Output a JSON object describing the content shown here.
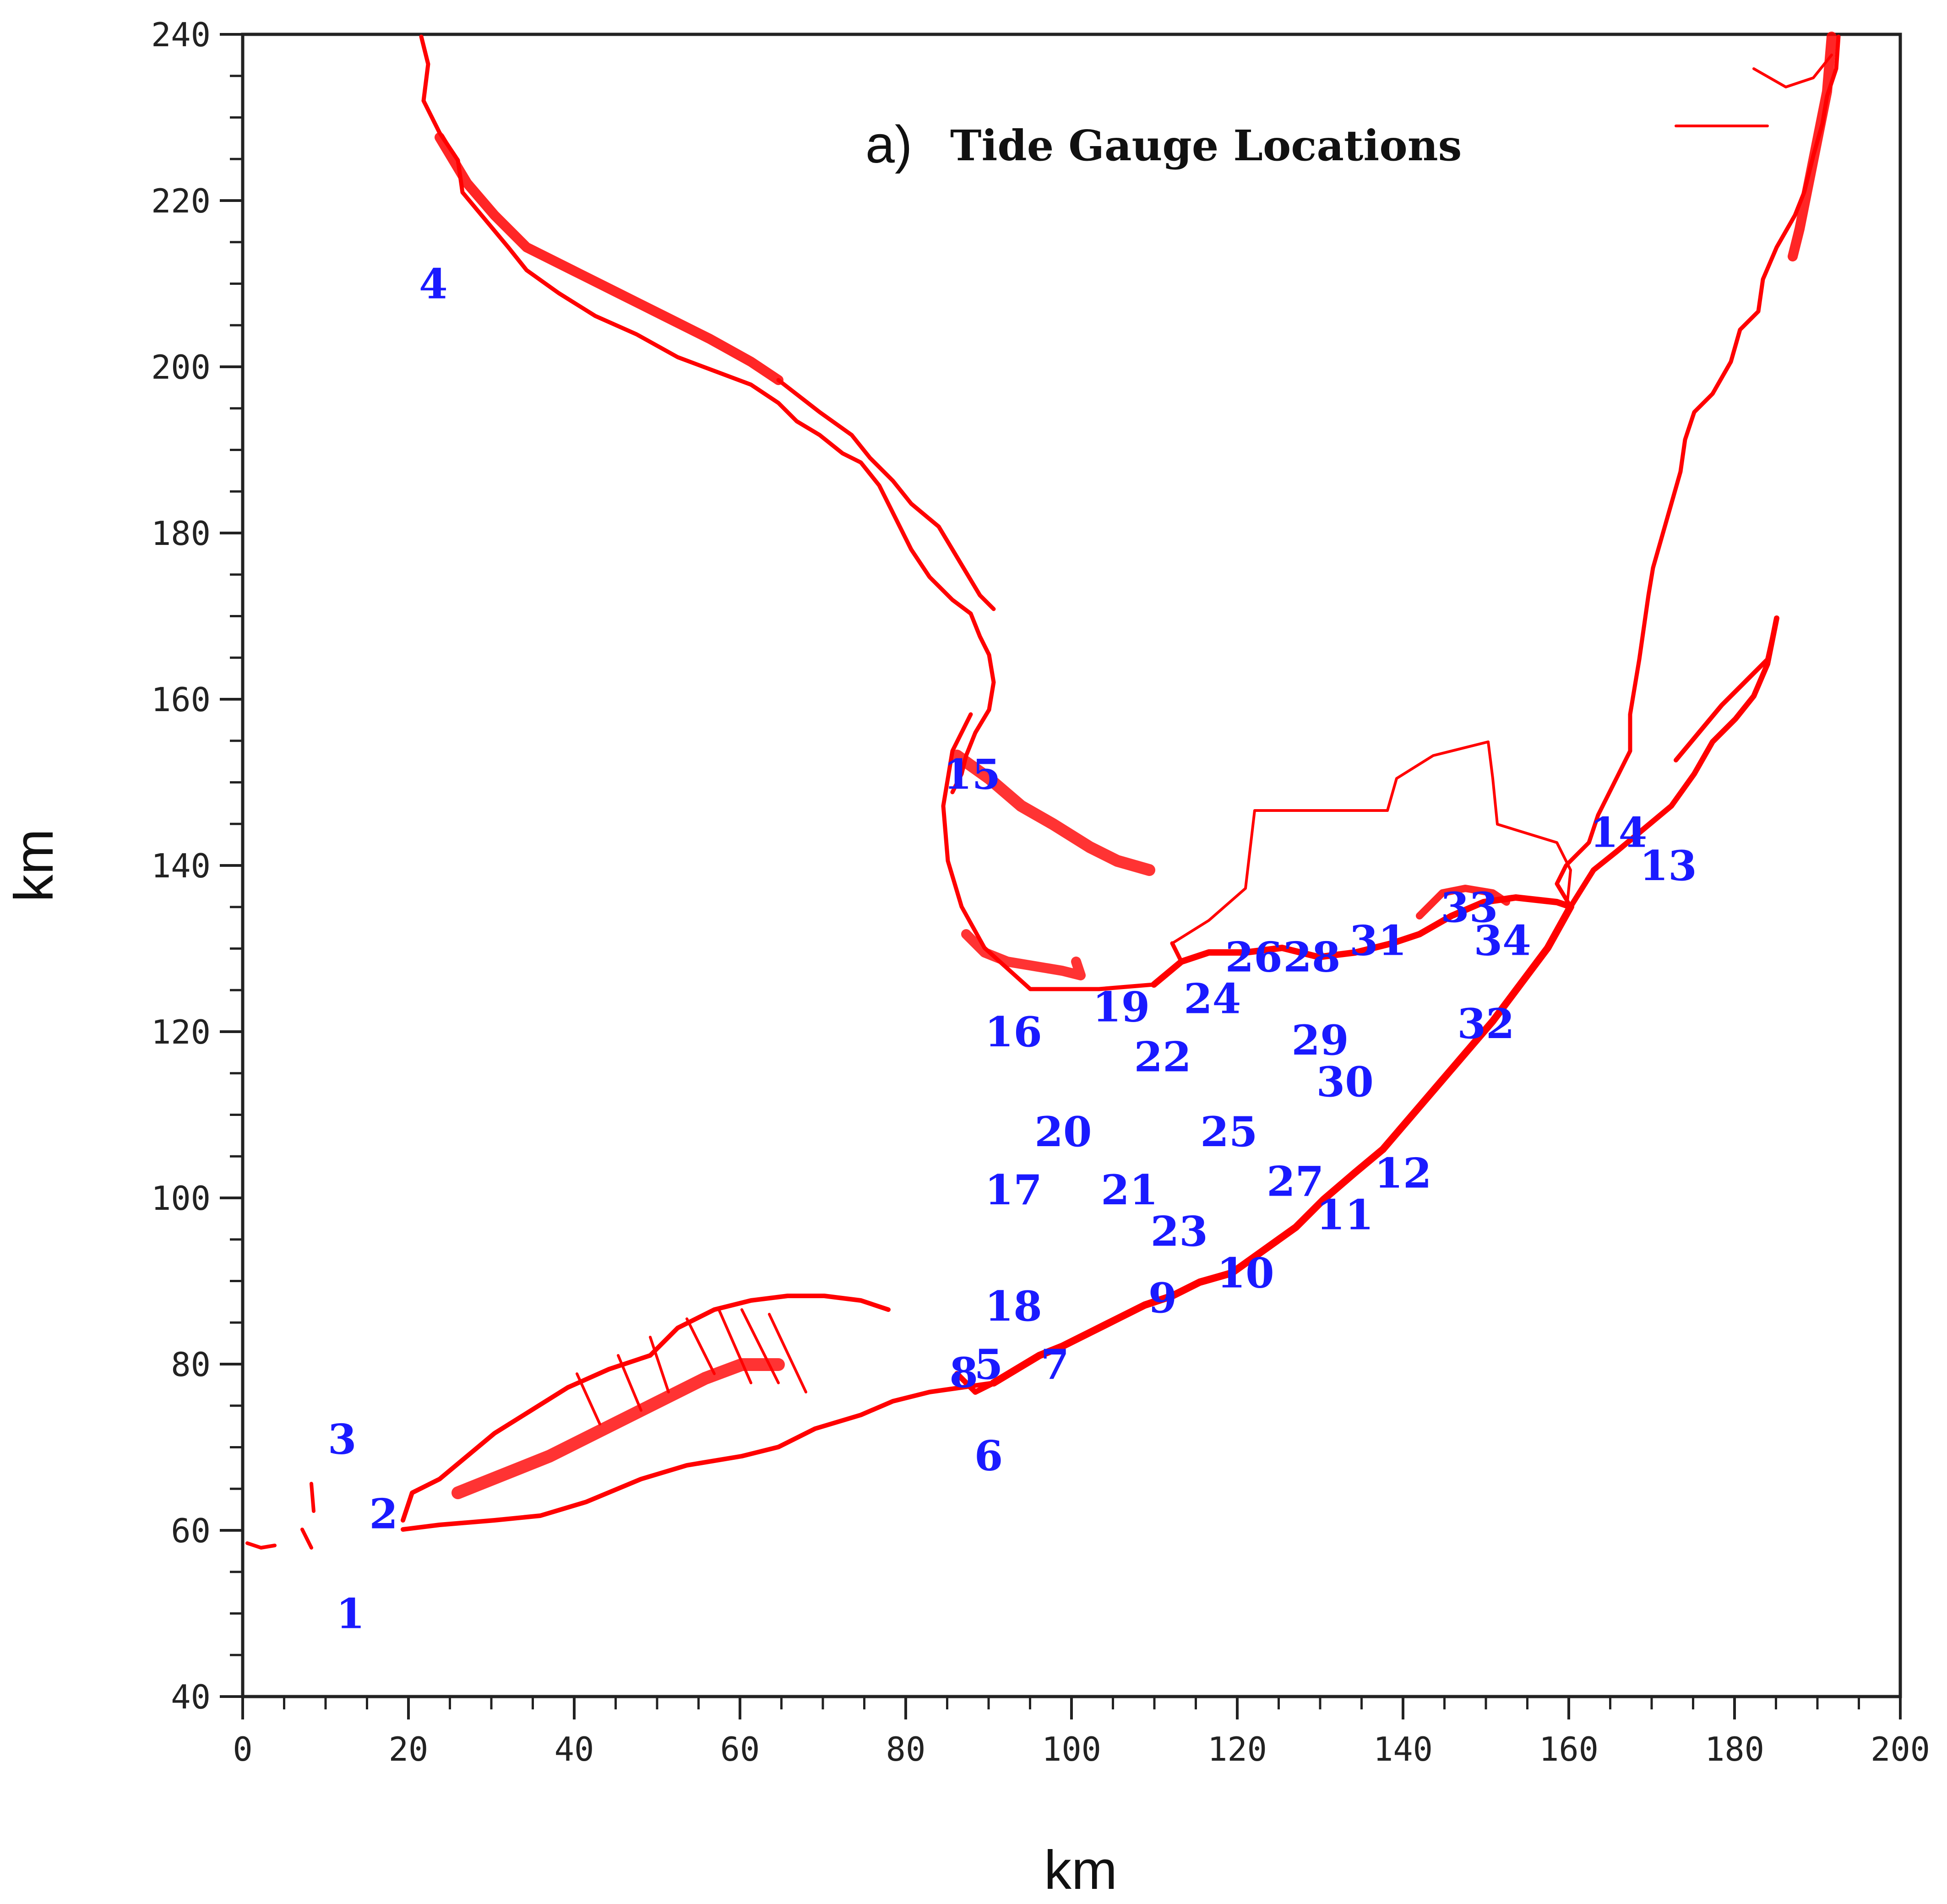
{
  "figure": {
    "panel_letter": "a)",
    "title": "Tide Gauge Locations"
  },
  "axes": {
    "x": {
      "label": "km",
      "min": 0,
      "max": 200,
      "ticks": [
        "0",
        "20",
        "40",
        "60",
        "80",
        "100",
        "120",
        "140",
        "160",
        "180",
        "200"
      ]
    },
    "y": {
      "label": "km",
      "min": 40,
      "max": 240,
      "ticks": [
        "40",
        "60",
        "80",
        "100",
        "120",
        "140",
        "160",
        "180",
        "200",
        "220",
        "240"
      ]
    }
  },
  "colors": {
    "coastline": "#ff0000",
    "gauge_label": "#1a1aff",
    "axis": "#222222"
  },
  "chart_data": {
    "type": "scatter",
    "title": "Tide Gauge Locations",
    "xlabel": "km",
    "ylabel": "km",
    "xlim": [
      0,
      200
    ],
    "ylim": [
      40,
      240
    ],
    "grid": false,
    "gauges": [
      {
        "label": "1",
        "x": 13,
        "y": 50
      },
      {
        "label": "2",
        "x": 17,
        "y": 62
      },
      {
        "label": "3",
        "x": 12,
        "y": 71
      },
      {
        "label": "4",
        "x": 23,
        "y": 210
      },
      {
        "label": "5",
        "x": 90,
        "y": 80
      },
      {
        "label": "6",
        "x": 90,
        "y": 69
      },
      {
        "label": "7",
        "x": 98,
        "y": 80
      },
      {
        "label": "8",
        "x": 87,
        "y": 79
      },
      {
        "label": "9",
        "x": 111,
        "y": 88
      },
      {
        "label": "10",
        "x": 121,
        "y": 91
      },
      {
        "label": "11",
        "x": 133,
        "y": 98
      },
      {
        "label": "12",
        "x": 140,
        "y": 103
      },
      {
        "label": "13",
        "x": 172,
        "y": 140
      },
      {
        "label": "14",
        "x": 166,
        "y": 144
      },
      {
        "label": "15",
        "x": 88,
        "y": 151
      },
      {
        "label": "16",
        "x": 93,
        "y": 120
      },
      {
        "label": "17",
        "x": 93,
        "y": 101
      },
      {
        "label": "18",
        "x": 93,
        "y": 87
      },
      {
        "label": "19",
        "x": 106,
        "y": 123
      },
      {
        "label": "20",
        "x": 99,
        "y": 108
      },
      {
        "label": "21",
        "x": 107,
        "y": 101
      },
      {
        "label": "22",
        "x": 111,
        "y": 117
      },
      {
        "label": "23",
        "x": 113,
        "y": 96
      },
      {
        "label": "24",
        "x": 117,
        "y": 124
      },
      {
        "label": "25",
        "x": 119,
        "y": 108
      },
      {
        "label": "26",
        "x": 122,
        "y": 129
      },
      {
        "label": "27",
        "x": 127,
        "y": 102
      },
      {
        "label": "28",
        "x": 129,
        "y": 129
      },
      {
        "label": "29",
        "x": 130,
        "y": 119
      },
      {
        "label": "30",
        "x": 133,
        "y": 114
      },
      {
        "label": "31",
        "x": 137,
        "y": 131
      },
      {
        "label": "32",
        "x": 150,
        "y": 121
      },
      {
        "label": "33",
        "x": 148,
        "y": 135
      },
      {
        "label": "34",
        "x": 152,
        "y": 131
      }
    ]
  }
}
